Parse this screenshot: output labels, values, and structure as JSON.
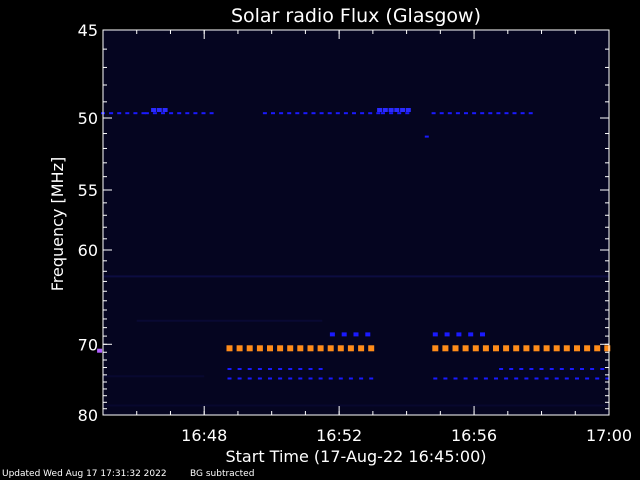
{
  "chart_data": {
    "type": "heatmap",
    "title": "Solar radio Flux (Glasgow)",
    "xlabel": "Start Time (17-Aug-22 16:45:00)",
    "ylabel": "Frequency [MHz]",
    "x_range_minutes": [
      0,
      15
    ],
    "x_ticks": [
      {
        "minute": 3,
        "label": "16:48"
      },
      {
        "minute": 7,
        "label": "16:52"
      },
      {
        "minute": 11,
        "label": "16:56"
      },
      {
        "minute": 15,
        "label": "17:00"
      }
    ],
    "y_range_mhz": [
      45,
      80
    ],
    "y_scale": "reciprocal",
    "y_ticks": [
      {
        "mhz": 45,
        "label": "45"
      },
      {
        "mhz": 50,
        "label": "50"
      },
      {
        "mhz": 55,
        "label": "55"
      },
      {
        "mhz": 60,
        "label": "60"
      },
      {
        "mhz": 70,
        "label": "70"
      },
      {
        "mhz": 80,
        "label": "80"
      }
    ],
    "background_color": "#050520",
    "features": [
      {
        "mhz": 70.5,
        "color": "#ff8c1a",
        "segments": [
          [
            3.75,
            8.0
          ],
          [
            9.85,
            15.0
          ]
        ],
        "spacing": 0.3,
        "size": "large"
      },
      {
        "mhz": 68.8,
        "color": "#1a1aff",
        "segments": [
          [
            6.8,
            7.9
          ],
          [
            9.85,
            11.5
          ]
        ],
        "spacing": 0.35,
        "size": "medium"
      },
      {
        "mhz": 73.2,
        "color": "#1a1aff",
        "segments": [
          [
            3.75,
            6.5
          ],
          [
            11.8,
            15.0
          ]
        ],
        "spacing": 0.3,
        "size": "small"
      },
      {
        "mhz": 74.5,
        "color": "#1a1aff",
        "segments": [
          [
            3.75,
            8.0
          ],
          [
            9.85,
            15.0
          ]
        ],
        "spacing": 0.3,
        "size": "small"
      },
      {
        "mhz": 49.7,
        "color": "#1a1aff",
        "segments": [
          [
            0.0,
            1.2
          ],
          [
            1.3,
            3.4
          ],
          [
            4.8,
            8.3
          ],
          [
            8.3,
            9.2
          ],
          [
            9.8,
            12.8
          ]
        ],
        "spacing": 0.24,
        "size": "small"
      },
      {
        "mhz": 49.5,
        "color": "#2a2aff",
        "segments": [
          [
            1.5,
            2.0
          ],
          [
            8.2,
            9.1
          ]
        ],
        "spacing": 0.17,
        "size": "medium"
      },
      {
        "mhz": 51.2,
        "color": "#1a1aff",
        "segments": [
          [
            9.6,
            9.75
          ]
        ],
        "spacing": 0.2,
        "size": "small"
      },
      {
        "mhz": 70.8,
        "color": "#b060ff",
        "segments": [
          [
            -0.1,
            0.0
          ]
        ],
        "spacing": 0.2,
        "size": "medium"
      }
    ]
  },
  "footer": {
    "updated": "Updated Wed Aug 17 17:31:32 2022",
    "note": "BG subtracted"
  }
}
